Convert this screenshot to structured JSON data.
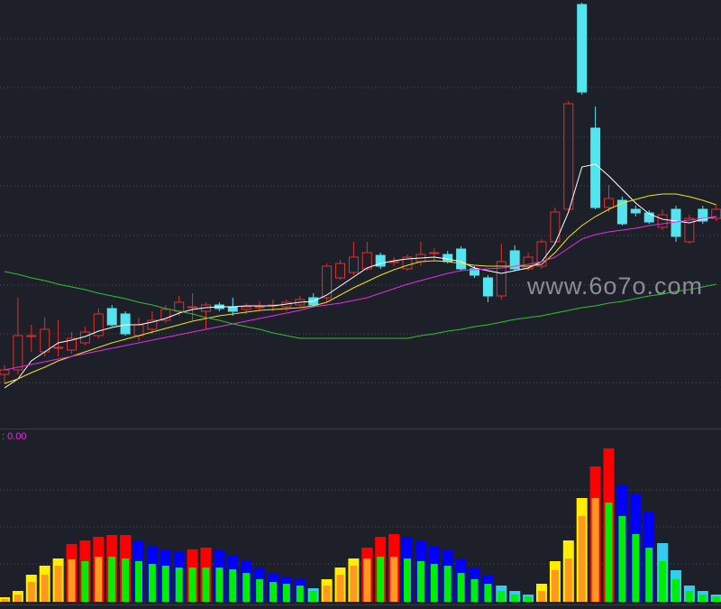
{
  "chart_data": [
    {
      "type": "candlestick",
      "ylim": [
        0,
        475
      ],
      "yticks": [
        51,
        105,
        159,
        214,
        269,
        323,
        378,
        432
      ],
      "grid": true,
      "up_color": "#e0302e",
      "down_color": "#54e4f0",
      "open": [
        60,
        65,
        103,
        85,
        90,
        87,
        95,
        103,
        133,
        127,
        103,
        110,
        120,
        130,
        135,
        130,
        137,
        135,
        132,
        135,
        137,
        135,
        137,
        145,
        145,
        167,
        173,
        177,
        192,
        185,
        177,
        185,
        195,
        193,
        199,
        177,
        167,
        147,
        197,
        177,
        180,
        207,
        243,
        470,
        333,
        245,
        253,
        243,
        239,
        223,
        243,
        207,
        243,
        233
      ],
      "close": [
        65,
        103,
        103,
        110,
        90,
        100,
        107,
        127,
        115,
        105,
        115,
        120,
        132,
        140,
        135,
        137,
        133,
        130,
        135,
        135,
        137,
        140,
        143,
        137,
        180,
        183,
        190,
        195,
        180,
        185,
        190,
        193,
        195,
        185,
        177,
        170,
        147,
        185,
        177,
        190,
        207,
        240,
        360,
        373,
        245,
        255,
        227,
        239,
        229,
        237,
        213,
        233,
        230,
        243
      ],
      "high": [
        70,
        145,
        115,
        123,
        120,
        107,
        113,
        133,
        137,
        130,
        123,
        130,
        137,
        147,
        150,
        140,
        140,
        145,
        139,
        141,
        143,
        143,
        147,
        150,
        183,
        187,
        207,
        207,
        195,
        190,
        193,
        207,
        200,
        197,
        202,
        180,
        170,
        205,
        203,
        195,
        210,
        245,
        363,
        472,
        357,
        270,
        257,
        247,
        242,
        243,
        247,
        237,
        247,
        247
      ],
      "low": [
        50,
        60,
        85,
        80,
        80,
        83,
        92,
        100,
        113,
        103,
        97,
        105,
        117,
        125,
        120,
        110,
        130,
        125,
        127,
        130,
        130,
        130,
        135,
        135,
        140,
        165,
        170,
        175,
        177,
        180,
        175,
        180,
        185,
        183,
        175,
        167,
        140,
        143,
        175,
        175,
        177,
        205,
        240,
        370,
        243,
        240,
        225,
        235,
        227,
        220,
        207,
        205,
        227,
        230
      ],
      "series": [
        {
          "color": "#ffffff",
          "values": [
            45,
            55,
            75,
            85,
            95,
            98,
            102,
            108,
            112,
            115,
            115,
            118,
            122,
            128,
            132,
            134,
            135,
            135,
            136,
            136,
            136,
            138,
            140,
            141,
            148,
            158,
            168,
            178,
            183,
            186,
            188,
            189,
            190,
            188,
            185,
            178,
            175,
            172,
            175,
            178,
            185,
            205,
            240,
            290,
            293,
            280,
            265,
            250,
            238,
            232,
            230,
            228,
            232,
            235
          ]
        },
        {
          "color": "#f0e020",
          "values": [
            50,
            55,
            62,
            68,
            75,
            80,
            85,
            90,
            95,
            99,
            103,
            107,
            111,
            115,
            119,
            122,
            125,
            127,
            129,
            131,
            132,
            133,
            134,
            136,
            140,
            148,
            156,
            163,
            170,
            176,
            181,
            185,
            186,
            185,
            183,
            181,
            180,
            180,
            180,
            180,
            182,
            195,
            212,
            225,
            235,
            243,
            250,
            254,
            258,
            260,
            260,
            257,
            253,
            248
          ]
        },
        {
          "color": "#e030e0",
          "values": [
            65,
            68,
            71,
            74,
            77,
            80,
            83,
            86,
            89,
            92,
            95,
            98,
            101,
            104,
            107,
            110,
            113,
            116,
            119,
            122,
            125,
            128,
            131,
            135,
            137,
            139,
            142,
            145,
            150,
            155,
            160,
            164,
            168,
            172,
            175,
            176,
            177,
            178,
            180,
            182,
            185,
            190,
            200,
            210,
            215,
            218,
            220,
            222,
            225,
            227,
            229,
            231,
            233,
            235
          ]
        },
        {
          "color": "#30c030",
          "values": [
            174,
            171,
            167,
            164,
            160,
            157,
            154,
            150,
            147,
            144,
            140,
            137,
            133,
            130,
            127,
            123,
            120,
            116,
            113,
            110,
            106,
            103,
            100,
            100,
            100,
            100,
            100,
            100,
            100,
            100,
            100,
            103,
            105,
            108,
            110,
            113,
            115,
            118,
            121,
            123,
            125,
            128,
            131,
            134,
            136,
            139,
            141,
            144,
            147,
            149,
            152,
            154,
            157,
            160
          ]
        }
      ],
      "watermark": "www.6o7o.com"
    },
    {
      "type": "bar",
      "label": ": 0.00",
      "ylim": [
        0,
        180
      ],
      "yticks": [
        42,
        83,
        124
      ],
      "grid": true,
      "outer_values": [
        5,
        12,
        30,
        40,
        48,
        64,
        68,
        72,
        74,
        74,
        67,
        62,
        58,
        55,
        58,
        60,
        58,
        52,
        45,
        38,
        32,
        28,
        25,
        15,
        25,
        38,
        48,
        60,
        72,
        75,
        72,
        68,
        62,
        58,
        48,
        38,
        30,
        18,
        12,
        8,
        20,
        45,
        68,
        115,
        150,
        170,
        130,
        120,
        100,
        65,
        35,
        18,
        12,
        8
      ],
      "outer_colors": [
        "#ffee00",
        "#ffee00",
        "#ffee00",
        "#ffee00",
        "#ffee00",
        "#ff0000",
        "#ff0000",
        "#ff0000",
        "#ff0000",
        "#ff0000",
        "#0000ff",
        "#0000ff",
        "#0000ff",
        "#0000ff",
        "#ff0000",
        "#ff0000",
        "#0000ff",
        "#0000ff",
        "#0000ff",
        "#0000ff",
        "#0000ff",
        "#0000ff",
        "#0000ff",
        "#33ccee",
        "#ffee00",
        "#ffee00",
        "#ffee00",
        "#ff0000",
        "#ff0000",
        "#ff0000",
        "#0000ff",
        "#0000ff",
        "#0000ff",
        "#0000ff",
        "#0000ff",
        "#0000ff",
        "#0000ff",
        "#33ccee",
        "#33ccee",
        "#33ccee",
        "#ffee00",
        "#ffee00",
        "#ffee00",
        "#ffee00",
        "#ff0000",
        "#ff0000",
        "#0000ff",
        "#0000ff",
        "#0000ff",
        "#33ccee",
        "#33ccee",
        "#33ccee",
        "#33ccee",
        "#33ccee"
      ],
      "inner_values": [
        3,
        8,
        22,
        30,
        40,
        47,
        45,
        50,
        50,
        48,
        45,
        42,
        40,
        38,
        38,
        38,
        38,
        36,
        32,
        25,
        22,
        20,
        18,
        12,
        18,
        30,
        40,
        48,
        50,
        50,
        48,
        45,
        42,
        40,
        32,
        25,
        20,
        12,
        8,
        6,
        12,
        35,
        48,
        95,
        115,
        110,
        95,
        75,
        60,
        45,
        25,
        12,
        8,
        6
      ],
      "inner_colors": [
        "#ff9922",
        "#ff9922",
        "#ff9922",
        "#ff9922",
        "#ff9922",
        "#ff9922",
        "#00ee00",
        "#ff9922",
        "#00ee00",
        "#00ee00",
        "#00ee00",
        "#00ee00",
        "#00ee00",
        "#00ee00",
        "#00ee00",
        "#00ee00",
        "#00ee00",
        "#00ee00",
        "#00ee00",
        "#00ee00",
        "#00ee00",
        "#00ee00",
        "#00ee00",
        "#00ee00",
        "#ff9922",
        "#ff9922",
        "#ff9922",
        "#ff9922",
        "#00ee00",
        "#ff9922",
        "#00ee00",
        "#00ee00",
        "#00ee00",
        "#00ee00",
        "#00ee00",
        "#00ee00",
        "#00ee00",
        "#00ee00",
        "#00ee00",
        "#00ee00",
        "#ff9922",
        "#ff9922",
        "#ff9922",
        "#ff9922",
        "#ff9922",
        "#00ee00",
        "#00ee00",
        "#00ee00",
        "#00ee00",
        "#00ee00",
        "#00ee00",
        "#00ee00",
        "#00ee00",
        "#00ee00"
      ]
    }
  ]
}
